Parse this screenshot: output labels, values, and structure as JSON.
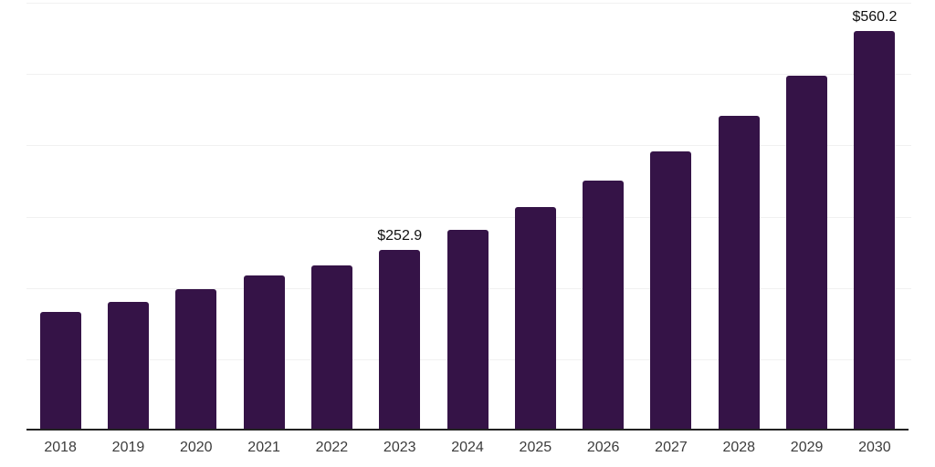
{
  "chart_data": {
    "type": "bar",
    "title": "",
    "xlabel": "",
    "ylabel": "",
    "categories": [
      "2018",
      "2019",
      "2020",
      "2021",
      "2022",
      "2023",
      "2024",
      "2025",
      "2026",
      "2027",
      "2028",
      "2029",
      "2030"
    ],
    "values": [
      166,
      180,
      198,
      217,
      232,
      252.9,
      281,
      313,
      350,
      391,
      441,
      498,
      560.2
    ],
    "annotations": [
      {
        "index": 5,
        "text": "$252.9"
      },
      {
        "index": 12,
        "text": "$560.2"
      }
    ],
    "ylim": [
      0,
      600
    ],
    "grid": {
      "visible": true,
      "interval": 100,
      "y_tick_labels_visible": false
    },
    "legend": "none",
    "colors": {
      "bar": "#351347",
      "gridline": "#f1f1f1",
      "axis_line": "#222222",
      "tick_label": "#3c3c3c",
      "value_label": "#111111",
      "background": "#ffffff"
    }
  }
}
